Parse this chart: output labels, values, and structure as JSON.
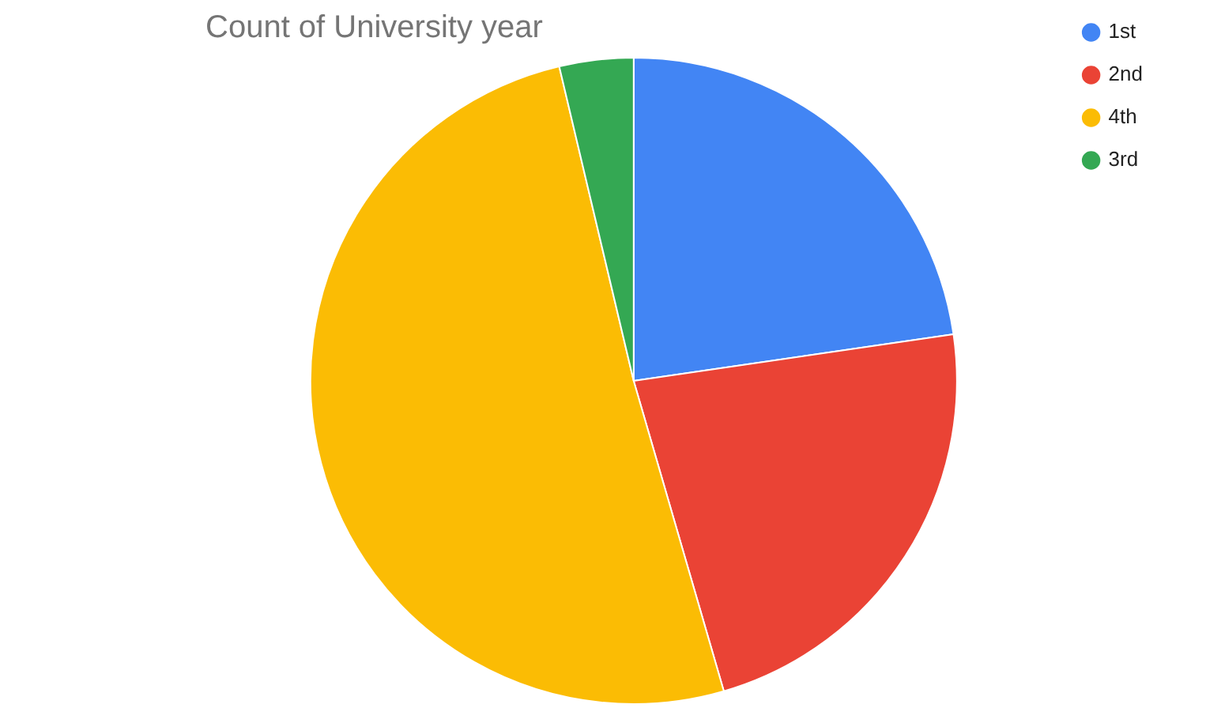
{
  "chart_data": {
    "type": "pie",
    "title": "Count of University year",
    "categories": [
      "1st",
      "2nd",
      "4th",
      "3rd"
    ],
    "values": [
      22.7,
      22.8,
      50.8,
      3.7
    ],
    "colors": [
      "#4285f4",
      "#ea4335",
      "#fbbc04",
      "#34a853"
    ],
    "legend": "right"
  }
}
